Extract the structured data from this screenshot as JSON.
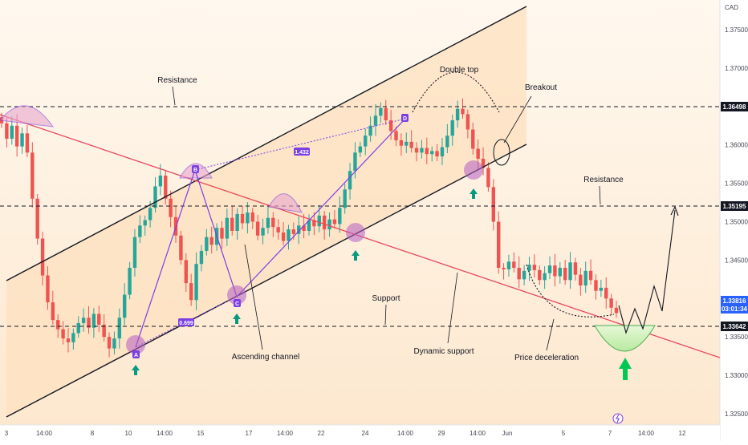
{
  "header": {
    "currency": "CAD"
  },
  "price_axis": {
    "ticks": [
      "1.37500",
      "1.37000",
      "1.36500",
      "1.36000",
      "1.35500",
      "1.35000",
      "1.34500",
      "1.34000",
      "1.33500",
      "1.33000",
      "1.32500"
    ],
    "levels": {
      "resistance_top": "1.36498",
      "resistance_mid": "1.35195",
      "current": "1.33816",
      "countdown": "03:01:34",
      "support": "1.33642"
    }
  },
  "time_axis": {
    "ticks": [
      "3",
      "14:00",
      "8",
      "10",
      "14:00",
      "15",
      "17",
      "14:00",
      "22",
      "24",
      "14:00",
      "29",
      "14:00",
      "Jun",
      "5",
      "7",
      "14:00",
      "12"
    ]
  },
  "annotations": {
    "resistance_top": "Resistance",
    "double_top": "Double top",
    "breakout": "Breakout",
    "resistance_mid": "Resistance",
    "support": "Support",
    "dynamic_support": "Dynamic support",
    "ascending_channel": "Ascending channel",
    "price_deceleration": "Price deceleration"
  },
  "pattern": {
    "ratio_bd": "1.432",
    "ratio_ac": "0.699",
    "points": [
      "A",
      "B",
      "C",
      "D"
    ]
  },
  "colors": {
    "bull": "#26a69a",
    "bear": "#ef5350",
    "trendline": "#e8475f",
    "pattern": "#7b3fe4",
    "channel_fill": "#fde3c2",
    "arrow": "#089981"
  },
  "chart_data": {
    "type": "candlestick",
    "symbol_quote": "CAD",
    "ylim": [
      1.323,
      1.379
    ],
    "key_levels": [
      1.36498,
      1.35195,
      1.33642
    ],
    "close_path": [
      1.3628,
      1.3608,
      1.3625,
      1.3598,
      1.3615,
      1.359,
      1.353,
      1.3478,
      1.343,
      1.3395,
      1.3372,
      1.336,
      1.3348,
      1.3343,
      1.3355,
      1.3368,
      1.3375,
      1.3362,
      1.338,
      1.3366,
      1.335,
      1.3335,
      1.3348,
      1.3375,
      1.3405,
      1.344,
      1.348,
      1.3495,
      1.3502,
      1.3518,
      1.3546,
      1.356,
      1.353,
      1.3506,
      1.3482,
      1.345,
      1.342,
      1.3398,
      1.3445,
      1.3462,
      1.348,
      1.347,
      1.3492,
      1.3478,
      1.3505,
      1.3488,
      1.351,
      1.3498,
      1.3512,
      1.35,
      1.3482,
      1.3492,
      1.3505,
      1.3493,
      1.3486,
      1.3475,
      1.349,
      1.3484,
      1.3495,
      1.3488,
      1.3502,
      1.3494,
      1.3508,
      1.349,
      1.3503,
      1.3497,
      1.3518,
      1.3542,
      1.3566,
      1.359,
      1.3598,
      1.3612,
      1.3625,
      1.3638,
      1.3648,
      1.3632,
      1.3618,
      1.3606,
      1.3599,
      1.3604,
      1.3596,
      1.359,
      1.3596,
      1.3588,
      1.3592,
      1.3585,
      1.3597,
      1.3612,
      1.3632,
      1.3647,
      1.364,
      1.362,
      1.3595,
      1.3582,
      1.357,
      1.3545,
      1.35,
      1.344,
      1.3438,
      1.3448,
      1.344,
      1.3425,
      1.3436,
      1.3444,
      1.3437,
      1.3424,
      1.3433,
      1.3443,
      1.3429,
      1.344,
      1.3424,
      1.3447,
      1.3431,
      1.3417,
      1.3436,
      1.3424,
      1.341,
      1.3414,
      1.34,
      1.3388,
      1.3381
    ],
    "series": [
      {
        "name": "Resistance",
        "y": 1.36498
      },
      {
        "name": "Resistance",
        "y": 1.35195
      },
      {
        "name": "Support",
        "y": 1.33642
      }
    ]
  }
}
